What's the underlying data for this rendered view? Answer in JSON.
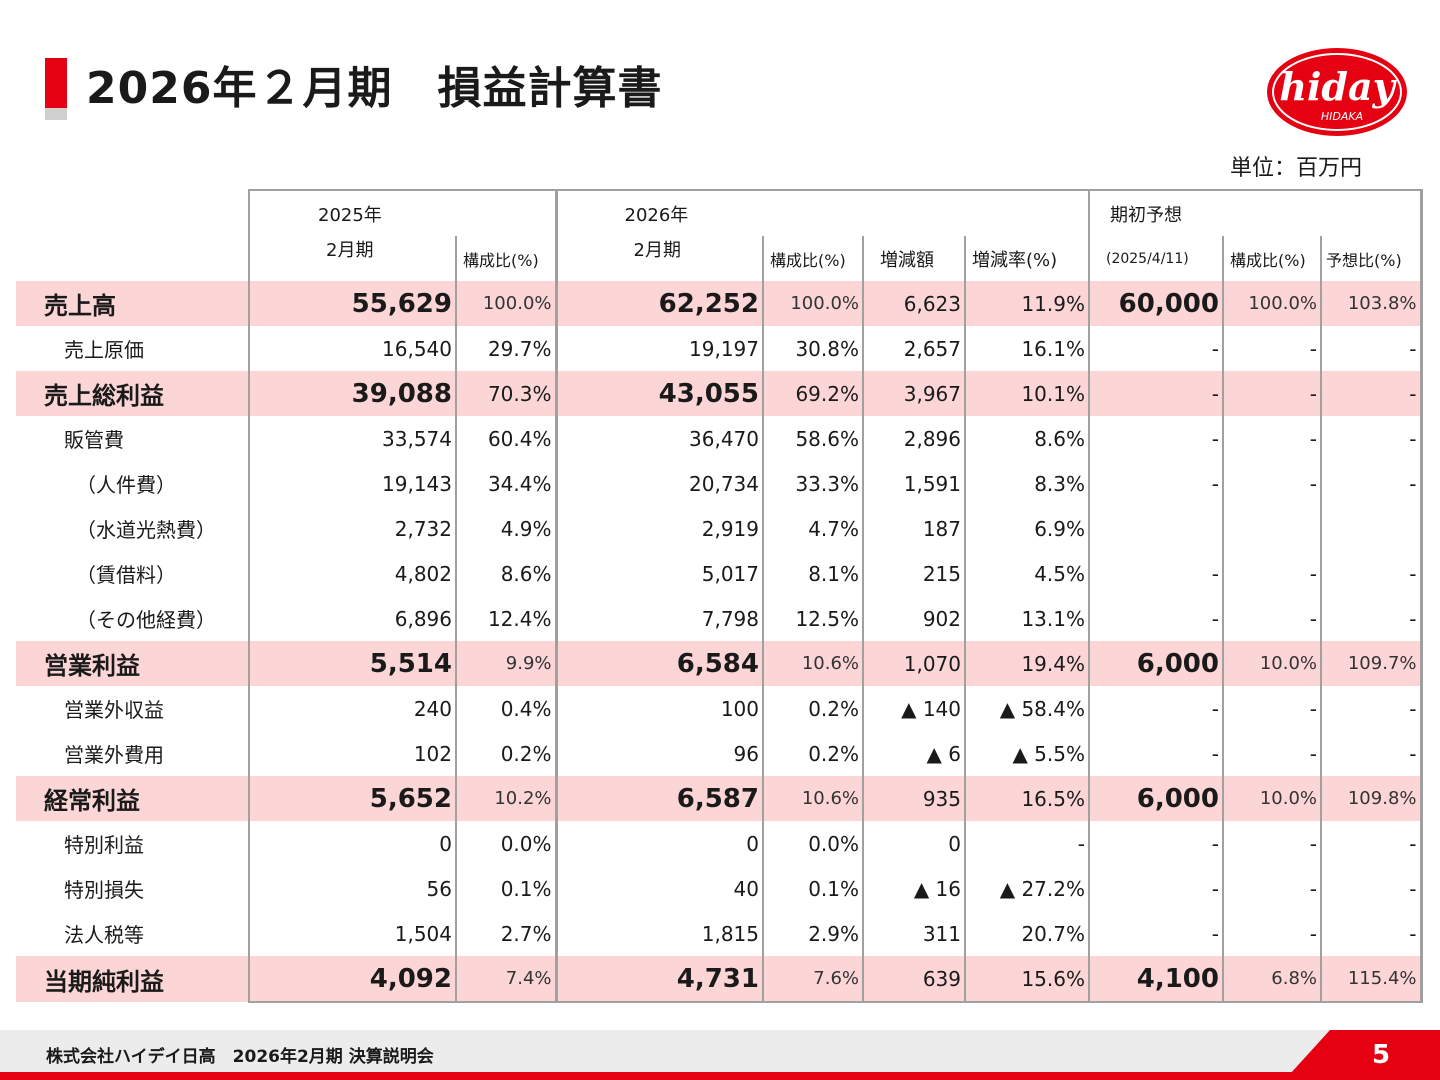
{
  "title": "2026年２月期　損益計算書",
  "logo_text": "hiday",
  "logo_sub": "HIDAKA",
  "unit": "単位：百万円",
  "header": {
    "fy2025_year": "2025年",
    "fy2025_month": "2月期",
    "ratio": "構成比(%)",
    "fy2026_year": "2026年",
    "fy2026_month": "2月期",
    "change": "増減額",
    "change_rate": "増減率(%)",
    "forecast": "期初予想",
    "forecast_date": "(2025/4/11)",
    "forecast_ratio": "予想比(%)"
  },
  "rows": [
    {
      "label": "売上高",
      "v25": "55,629",
      "r25": "100.0%",
      "v26": "62,252",
      "r26": "100.0%",
      "chg": "6,623",
      "rate": "11.9%",
      "fc": "60,000",
      "fcr": "100.0%",
      "vs": "103.8%"
    },
    {
      "label": "売上原価",
      "v25": "16,540",
      "r25": "29.7%",
      "v26": "19,197",
      "r26": "30.8%",
      "chg": "2,657",
      "rate": "16.1%",
      "fc": "-",
      "fcr": "-",
      "vs": "-"
    },
    {
      "label": "売上総利益",
      "v25": "39,088",
      "r25": "70.3%",
      "v26": "43,055",
      "r26": "69.2%",
      "chg": "3,967",
      "rate": "10.1%",
      "fc": "-",
      "fcr": "-",
      "vs": "-"
    },
    {
      "label": "販管費",
      "v25": "33,574",
      "r25": "60.4%",
      "v26": "36,470",
      "r26": "58.6%",
      "chg": "2,896",
      "rate": "8.6%",
      "fc": "-",
      "fcr": "-",
      "vs": "-"
    },
    {
      "label": "（人件費）",
      "v25": "19,143",
      "r25": "34.4%",
      "v26": "20,734",
      "r26": "33.3%",
      "chg": "1,591",
      "rate": "8.3%",
      "fc": "-",
      "fcr": "-",
      "vs": "-"
    },
    {
      "label": "（水道光熱費）",
      "v25": "2,732",
      "r25": "4.9%",
      "v26": "2,919",
      "r26": "4.7%",
      "chg": "187",
      "rate": "6.9%",
      "fc": "",
      "fcr": "",
      "vs": ""
    },
    {
      "label": "（賃借料）",
      "v25": "4,802",
      "r25": "8.6%",
      "v26": "5,017",
      "r26": "8.1%",
      "chg": "215",
      "rate": "4.5%",
      "fc": "-",
      "fcr": "-",
      "vs": "-"
    },
    {
      "label": "（その他経費）",
      "v25": "6,896",
      "r25": "12.4%",
      "v26": "7,798",
      "r26": "12.5%",
      "chg": "902",
      "rate": "13.1%",
      "fc": "-",
      "fcr": "-",
      "vs": "-"
    },
    {
      "label": "営業利益",
      "v25": "5,514",
      "r25": "9.9%",
      "v26": "6,584",
      "r26": "10.6%",
      "chg": "1,070",
      "rate": "19.4%",
      "fc": "6,000",
      "fcr": "10.0%",
      "vs": "109.7%"
    },
    {
      "label": "営業外収益",
      "v25": "240",
      "r25": "0.4%",
      "v26": "100",
      "r26": "0.2%",
      "chg": "▲ 140",
      "rate": "▲ 58.4%",
      "fc": "-",
      "fcr": "-",
      "vs": "-"
    },
    {
      "label": "営業外費用",
      "v25": "102",
      "r25": "0.2%",
      "v26": "96",
      "r26": "0.2%",
      "chg": "▲ 6",
      "rate": "▲ 5.5%",
      "fc": "-",
      "fcr": "-",
      "vs": "-"
    },
    {
      "label": "経常利益",
      "v25": "5,652",
      "r25": "10.2%",
      "v26": "6,587",
      "r26": "10.6%",
      "chg": "935",
      "rate": "16.5%",
      "fc": "6,000",
      "fcr": "10.0%",
      "vs": "109.8%"
    },
    {
      "label": "特別利益",
      "v25": "0",
      "r25": "0.0%",
      "v26": "0",
      "r26": "0.0%",
      "chg": "0",
      "rate": "-",
      "fc": "-",
      "fcr": "-",
      "vs": "-"
    },
    {
      "label": "特別損失",
      "v25": "56",
      "r25": "0.1%",
      "v26": "40",
      "r26": "0.1%",
      "chg": "▲ 16",
      "rate": "▲ 27.2%",
      "fc": "-",
      "fcr": "-",
      "vs": "-"
    },
    {
      "label": "法人税等",
      "v25": "1,504",
      "r25": "2.7%",
      "v26": "1,815",
      "r26": "2.9%",
      "chg": "311",
      "rate": "20.7%",
      "fc": "-",
      "fcr": "-",
      "vs": "-"
    },
    {
      "label": "当期純利益",
      "v25": "4,092",
      "r25": "7.4%",
      "v26": "4,731",
      "r26": "7.6%",
      "chg": "639",
      "rate": "15.6%",
      "fc": "4,100",
      "fcr": "6.8%",
      "vs": "115.4%"
    }
  ],
  "footer": {
    "company": "株式会社ハイデイ日高　2026年2月期  決算説明会",
    "page": "5"
  },
  "colors": {
    "accent": "#e50012",
    "highlight_row": "#fcd5d7",
    "border": "#a0a0a0"
  }
}
